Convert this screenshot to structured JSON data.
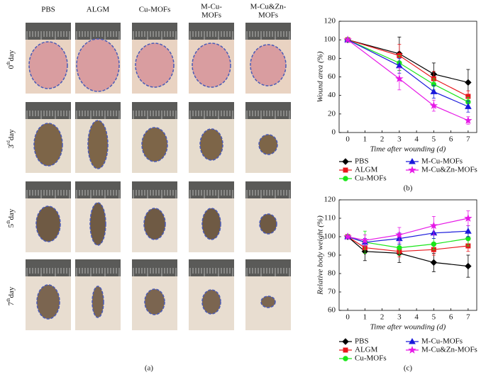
{
  "photo_grid": {
    "columns": [
      "PBS",
      "ALGM",
      "Cu-MOFs",
      [
        "M-Cu-",
        "MOFs"
      ],
      [
        "M-Cu&Zn-",
        "MOFs"
      ]
    ],
    "rows": [
      {
        "num": "0",
        "sup": "th",
        "unit": "day"
      },
      {
        "num": "3",
        "sup": "rd",
        "unit": "day"
      },
      {
        "num": "5",
        "sup": "th",
        "unit": "day"
      },
      {
        "num": "7",
        "sup": "th",
        "unit": "day"
      }
    ],
    "label": "(a)"
  },
  "chart_data": [
    {
      "type": "line",
      "label": "(b)",
      "x_label": "Time after wounding (d)",
      "y_label": "Wound area (%)",
      "x": [
        0,
        3,
        5,
        7
      ],
      "xlim": [
        -0.5,
        7.5
      ],
      "xticks": [
        0,
        1,
        2,
        3,
        4,
        5,
        6,
        7
      ],
      "ylim": [
        0,
        120
      ],
      "yticks": [
        0,
        20,
        40,
        60,
        80,
        100,
        120
      ],
      "series": [
        {
          "name": "PBS",
          "color": "#000000",
          "marker": "diamond",
          "values": [
            100,
            85,
            63,
            54
          ],
          "errors": [
            0,
            18,
            12,
            14
          ]
        },
        {
          "name": "ALGM",
          "color": "#e8161b",
          "marker": "square",
          "values": [
            100,
            83,
            58,
            39
          ],
          "errors": [
            0,
            12,
            8,
            6
          ]
        },
        {
          "name": "Cu-MOFs",
          "color": "#19e619",
          "marker": "circle",
          "values": [
            100,
            75,
            52,
            33
          ],
          "errors": [
            0,
            8,
            6,
            5
          ]
        },
        {
          "name": "M-Cu-MOFs",
          "color": "#1a1adb",
          "marker": "triangle",
          "values": [
            100,
            72,
            44,
            28
          ],
          "errors": [
            0,
            8,
            7,
            6
          ]
        },
        {
          "name": "M-Cu&Zn-MOFs",
          "color": "#e619e6",
          "marker": "star",
          "values": [
            100,
            58,
            29,
            13
          ],
          "errors": [
            0,
            12,
            6,
            4
          ]
        }
      ]
    },
    {
      "type": "line",
      "label": "(c)",
      "x_label": "Time after wounding (d)",
      "y_label": "Relative body weight (%)",
      "x": [
        0,
        1,
        3,
        5,
        7
      ],
      "xlim": [
        -0.5,
        7.5
      ],
      "xticks": [
        0,
        1,
        2,
        3,
        4,
        5,
        6,
        7
      ],
      "ylim": [
        60,
        120
      ],
      "yticks": [
        60,
        70,
        80,
        90,
        100,
        110,
        120
      ],
      "series": [
        {
          "name": "PBS",
          "color": "#000000",
          "marker": "diamond",
          "values": [
            100,
            92,
            91,
            86,
            84
          ],
          "errors": [
            0,
            5,
            5,
            5,
            6
          ]
        },
        {
          "name": "ALGM",
          "color": "#e8161b",
          "marker": "square",
          "values": [
            100,
            94,
            92,
            93,
            95
          ],
          "errors": [
            0,
            3,
            3,
            3,
            3
          ]
        },
        {
          "name": "Cu-MOFs",
          "color": "#19e619",
          "marker": "circle",
          "values": [
            100,
            97,
            94,
            96,
            99
          ],
          "errors": [
            0,
            6,
            4,
            3,
            4
          ]
        },
        {
          "name": "M-Cu-MOFs",
          "color": "#1a1adb",
          "marker": "triangle",
          "values": [
            100,
            97,
            99,
            102,
            103
          ],
          "errors": [
            0,
            2,
            3,
            3,
            3
          ]
        },
        {
          "name": "M-Cu&Zn-MOFs",
          "color": "#e619e6",
          "marker": "star",
          "values": [
            100,
            98,
            101,
            106,
            110
          ],
          "errors": [
            0,
            3,
            4,
            5,
            4
          ]
        }
      ]
    }
  ]
}
